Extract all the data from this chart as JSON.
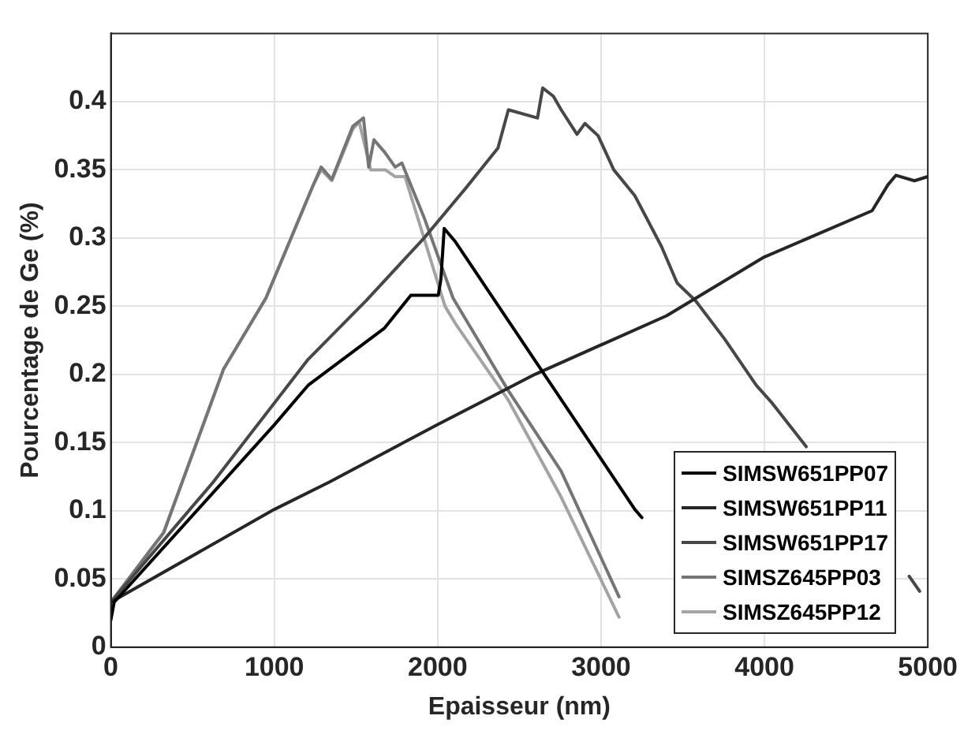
{
  "chart_data": {
    "type": "line",
    "xlabel": "Epaisseur (nm)",
    "ylabel": "Pourcentage de Ge (%)",
    "xlim": [
      0,
      5000
    ],
    "xticks": [
      0,
      1000,
      2000,
      3000,
      4000,
      5000
    ],
    "ylim": [
      0,
      0.45
    ],
    "yticks": [
      0,
      0.05,
      0.1,
      0.15,
      0.2,
      0.25,
      0.3,
      0.35,
      0.4
    ],
    "grid": true,
    "legend": "bottom right",
    "marker": "none",
    "line_style": "solid",
    "series": [
      {
        "name": "SIMSW651PP07",
        "color": "#000000",
        "x": [
          0,
          20,
          1000,
          1207,
          1675,
          1836,
          2004,
          2020,
          2040,
          2110,
          3207,
          3250
        ],
        "values": [
          0.02,
          0.033,
          0.163,
          0.192,
          0.234,
          0.258,
          0.258,
          0.27,
          0.307,
          0.297,
          0.101,
          0.095
        ]
      },
      {
        "name": "SIMSW651PP11",
        "color": "#262626",
        "x": [
          0,
          1000,
          1336,
          1997,
          2595,
          3401,
          3998,
          4659,
          4756,
          4805,
          4918,
          5000
        ],
        "values": [
          0.033,
          0.101,
          0.121,
          0.163,
          0.2,
          0.243,
          0.286,
          0.32,
          0.339,
          0.346,
          0.342,
          0.345
        ]
      },
      {
        "name": "SIMSW651PP17",
        "color": "#474747",
        "x": [
          0,
          626,
          1207,
          1562,
          1917,
          2175,
          2369,
          2433,
          2611,
          2643,
          2708,
          2756,
          2853,
          2901,
          2982,
          3078,
          3207,
          3369,
          3466,
          3579,
          3756,
          3950,
          4047,
          4256,
          4500,
          4886,
          4950
        ],
        "values": [
          0.033,
          0.121,
          0.211,
          0.254,
          0.3,
          0.337,
          0.366,
          0.394,
          0.388,
          0.41,
          0.404,
          0.394,
          0.376,
          0.384,
          0.375,
          0.35,
          0.331,
          0.294,
          0.267,
          0.254,
          0.226,
          0.192,
          0.179,
          0.147,
          null,
          0.052,
          0.041
        ]
      },
      {
        "name": "SIMSZ645PP03",
        "color": "#757575",
        "x": [
          0,
          323,
          690,
          949,
          1239,
          1287,
          1352,
          1481,
          1546,
          1578,
          1610,
          1675,
          1740,
          1781,
          1917,
          2094,
          2433,
          2756,
          3110
        ],
        "values": [
          0.033,
          0.084,
          0.204,
          0.256,
          0.339,
          0.352,
          0.343,
          0.382,
          0.388,
          0.352,
          0.372,
          0.363,
          0.352,
          0.355,
          0.315,
          0.256,
          0.188,
          0.129,
          0.037
        ]
      },
      {
        "name": "SIMSZ645PP12",
        "color": "#a3a3a3",
        "x": [
          0,
          323,
          690,
          949,
          1239,
          1287,
          1352,
          1481,
          1520,
          1590,
          1680,
          1740,
          1800,
          2045,
          2110,
          2433,
          2756,
          3110
        ],
        "values": [
          0.033,
          0.084,
          0.204,
          0.256,
          0.339,
          0.35,
          0.342,
          0.38,
          0.385,
          0.35,
          0.35,
          0.345,
          0.345,
          0.25,
          0.237,
          0.181,
          0.11,
          0.022
        ]
      }
    ]
  }
}
